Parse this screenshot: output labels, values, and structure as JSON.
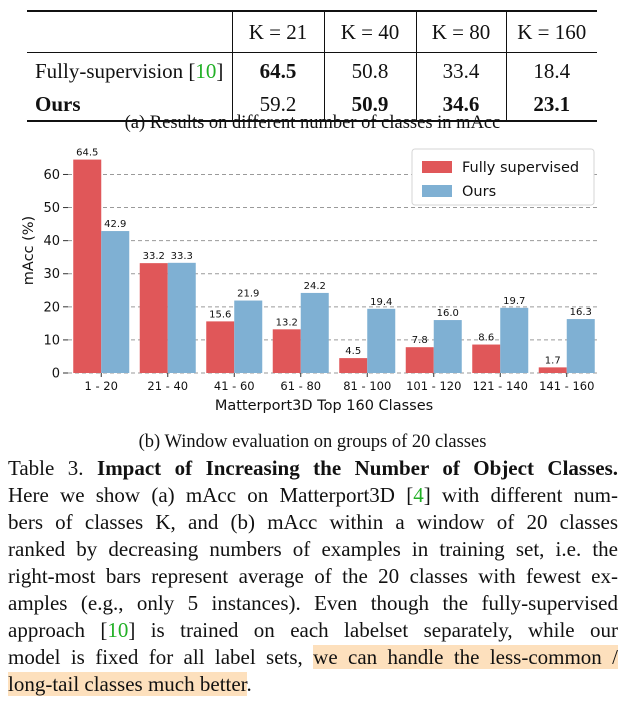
{
  "table": {
    "header_cells": [
      "K = 21",
      "K = 40",
      "K = 80",
      "K = 160"
    ],
    "rows": [
      {
        "label": "Fully-supervision",
        "cite": "10",
        "values": [
          "64.5",
          "50.8",
          "33.4",
          "18.4"
        ]
      },
      {
        "label": "Ours",
        "values": [
          "59.2",
          "50.9",
          "34.6",
          "23.1"
        ]
      }
    ]
  },
  "caption_a": "(a) Results on different number of classes in mAcc",
  "caption_b": "(b) Window evaluation on groups of 20 classes",
  "chart_data": {
    "type": "bar",
    "xlabel": "Matterport3D Top 160 Classes",
    "ylabel": "mAcc (%)",
    "ylim": [
      0,
      68
    ],
    "yticks": [
      0,
      10,
      20,
      30,
      40,
      50,
      60
    ],
    "grid": true,
    "legend_position": "top-right",
    "categories": [
      "1 - 20",
      "21 - 40",
      "41 - 60",
      "61 - 80",
      "81 - 100",
      "101 - 120",
      "121 - 140",
      "141 - 160"
    ],
    "series": [
      {
        "name": "Fully supervised",
        "color": "#e05759",
        "values": [
          64.5,
          33.2,
          15.6,
          13.2,
          4.5,
          7.8,
          8.6,
          1.7
        ],
        "labels": [
          "64.5",
          "33.2",
          "15.6",
          "13.2",
          "4.5",
          "7.8",
          "8.6",
          "1.7"
        ]
      },
      {
        "name": "Ours",
        "color": "#7fb0d3",
        "values": [
          42.9,
          33.3,
          21.9,
          24.2,
          19.4,
          16.0,
          19.7,
          16.3
        ],
        "labels": [
          "42.9",
          "33.3",
          "21.9",
          "24.2",
          "19.4",
          "16.0",
          "19.7",
          "16.3"
        ]
      }
    ]
  },
  "paragraph": {
    "l1_prefix": "Table 3. ",
    "l1_bold": "Impact of Increasing the Number of Object Classes.",
    "l2_a": "Here we show (a) mAcc on Matterport3D [",
    "l2_cite": "4",
    "l2_b": "] with different num-",
    "l3": "bers of classes K, and (b) mAcc within a window of 20 classes",
    "l4": "ranked by decreasing numbers of examples in training set, i.e. the",
    "l5": "right-most bars represent average of the 20 classes with fewest ex-",
    "l6": "amples (e.g., only 5 instances). Even though the fully-supervised",
    "l7_a": "approach [",
    "l7_cite": "10",
    "l7_b": "] is trained on each labelset separately, while our",
    "l8_a": "model is fixed for all label sets, ",
    "l8_hl": "we can handle the less-common /",
    "l9_hl": "long-tail classes much better",
    "l9_end": "."
  }
}
